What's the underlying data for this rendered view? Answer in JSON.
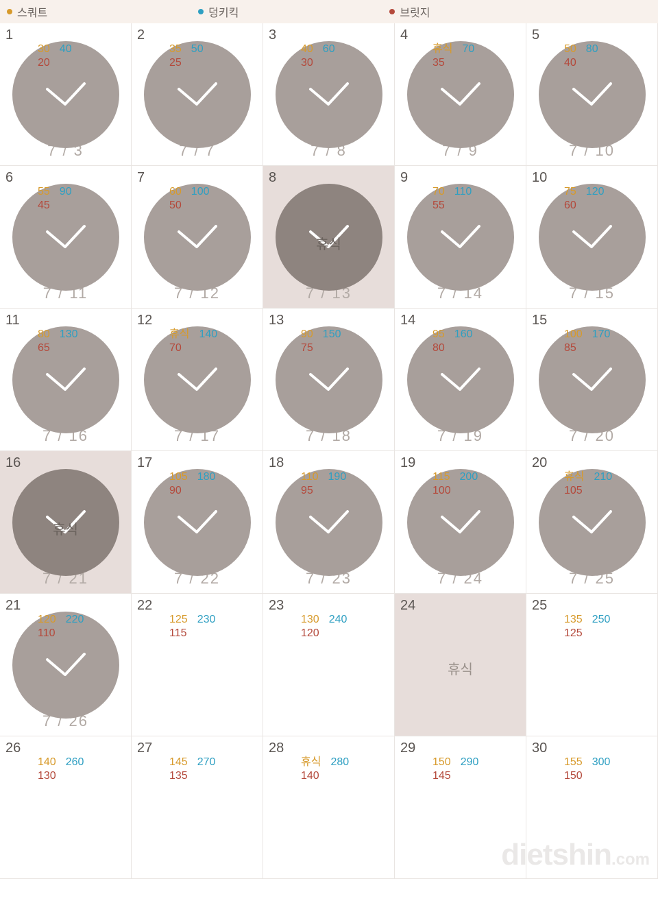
{
  "colors": {
    "squat": "#d79a2b",
    "donkey": "#2e9fc2",
    "bridge": "#b4493b",
    "legend_bg": "#f8f1ec",
    "circle": "#a89f9b",
    "circle_dark": "#8e847f",
    "rest_cell_bg": "#e7ddda",
    "grid_border": "#e9e5e2",
    "day_idx": "#5a5552",
    "date_text": "#b2aaa5"
  },
  "legend": [
    {
      "label": "스쿼트",
      "color": "#d79a2b"
    },
    {
      "label": "덩키킥",
      "color": "#2e9fc2"
    },
    {
      "label": "브릿지",
      "color": "#b4493b"
    }
  ],
  "watermark": {
    "main": "dietshin",
    "suffix": ".com"
  },
  "rest_word": "휴식",
  "days": [
    {
      "idx": "1",
      "squat": "30",
      "donkey": "40",
      "bridge": "20",
      "date": "7 / 3",
      "done": true
    },
    {
      "idx": "2",
      "squat": "35",
      "donkey": "50",
      "bridge": "25",
      "date": "7 / 7",
      "done": true
    },
    {
      "idx": "3",
      "squat": "40",
      "donkey": "60",
      "bridge": "30",
      "date": "7 / 8",
      "done": true
    },
    {
      "idx": "4",
      "squat": "휴식",
      "donkey": "70",
      "bridge": "35",
      "date": "7 / 9",
      "done": true
    },
    {
      "idx": "5",
      "squat": "50",
      "donkey": "80",
      "bridge": "40",
      "date": "7 / 10",
      "done": true
    },
    {
      "idx": "6",
      "squat": "55",
      "donkey": "90",
      "bridge": "45",
      "date": "7 / 11",
      "done": true
    },
    {
      "idx": "7",
      "squat": "60",
      "donkey": "100",
      "bridge": "50",
      "date": "7 / 12",
      "done": true
    },
    {
      "idx": "8",
      "rest_full": true,
      "date": "7 / 13",
      "done": true,
      "highlight": true
    },
    {
      "idx": "9",
      "squat": "70",
      "donkey": "110",
      "bridge": "55",
      "date": "7 / 14",
      "done": true
    },
    {
      "idx": "10",
      "squat": "75",
      "donkey": "120",
      "bridge": "60",
      "date": "7 / 15",
      "done": true
    },
    {
      "idx": "11",
      "squat": "80",
      "donkey": "130",
      "bridge": "65",
      "date": "7 / 16",
      "done": true
    },
    {
      "idx": "12",
      "squat": "휴식",
      "donkey": "140",
      "bridge": "70",
      "date": "7 / 17",
      "done": true
    },
    {
      "idx": "13",
      "squat": "90",
      "donkey": "150",
      "bridge": "75",
      "date": "7 / 18",
      "done": true
    },
    {
      "idx": "14",
      "squat": "95",
      "donkey": "160",
      "bridge": "80",
      "date": "7 / 19",
      "done": true
    },
    {
      "idx": "15",
      "squat": "100",
      "donkey": "170",
      "bridge": "85",
      "date": "7 / 20",
      "done": true
    },
    {
      "idx": "16",
      "rest_full": true,
      "date": "7 / 21",
      "done": true,
      "highlight": true
    },
    {
      "idx": "17",
      "squat": "105",
      "donkey": "180",
      "bridge": "90",
      "date": "7 / 22",
      "done": true
    },
    {
      "idx": "18",
      "squat": "110",
      "donkey": "190",
      "bridge": "95",
      "date": "7 / 23",
      "done": true
    },
    {
      "idx": "19",
      "squat": "115",
      "donkey": "200",
      "bridge": "100",
      "date": "7 / 24",
      "done": true
    },
    {
      "idx": "20",
      "squat": "휴식",
      "donkey": "210",
      "bridge": "105",
      "date": "7 / 25",
      "done": true
    },
    {
      "idx": "21",
      "squat": "120",
      "donkey": "220",
      "bridge": "110",
      "date": "7 / 26",
      "done": true
    },
    {
      "idx": "22",
      "squat": "125",
      "donkey": "230",
      "bridge": "115",
      "done": false
    },
    {
      "idx": "23",
      "squat": "130",
      "donkey": "240",
      "bridge": "120",
      "done": false
    },
    {
      "idx": "24",
      "rest_full": true,
      "done": false,
      "highlight": true,
      "plain_rest": true
    },
    {
      "idx": "25",
      "squat": "135",
      "donkey": "250",
      "bridge": "125",
      "done": false
    },
    {
      "idx": "26",
      "squat": "140",
      "donkey": "260",
      "bridge": "130",
      "done": false
    },
    {
      "idx": "27",
      "squat": "145",
      "donkey": "270",
      "bridge": "135",
      "done": false
    },
    {
      "idx": "28",
      "squat": "휴식",
      "donkey": "280",
      "bridge": "140",
      "done": false
    },
    {
      "idx": "29",
      "squat": "150",
      "donkey": "290",
      "bridge": "145",
      "done": false
    },
    {
      "idx": "30",
      "squat": "155",
      "donkey": "300",
      "bridge": "150",
      "done": false
    }
  ]
}
